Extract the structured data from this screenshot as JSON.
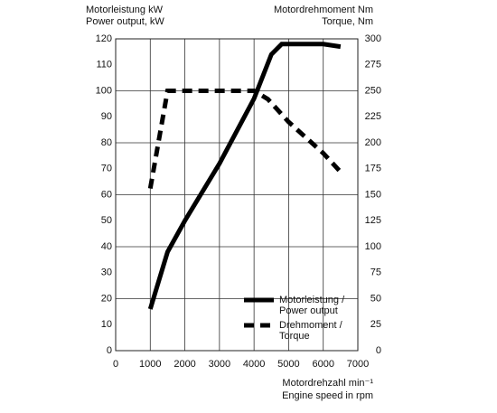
{
  "chart_data": {
    "type": "line",
    "y_label": [
      "Motorleistung kW",
      "Power output, kW"
    ],
    "y2_label": [
      "Motordrehmoment Nm",
      "Torque, Nm"
    ],
    "x_label": [
      "Motordrehzahl min⁻¹",
      "Engine speed in rpm"
    ],
    "xlim": [
      0,
      7000
    ],
    "xticks": [
      0,
      1000,
      2000,
      3000,
      4000,
      5000,
      6000,
      7000
    ],
    "ylim": [
      0,
      120
    ],
    "yticks": [
      0,
      10,
      20,
      30,
      40,
      50,
      60,
      70,
      80,
      90,
      100,
      110,
      120
    ],
    "y2lim": [
      0,
      300
    ],
    "y2ticks": [
      0,
      25,
      50,
      75,
      100,
      125,
      150,
      175,
      200,
      225,
      250,
      275,
      300
    ],
    "grid": true,
    "series": [
      {
        "name": "Motorleistung / Power output",
        "color": "#000000",
        "dash": false,
        "x": [
          1000,
          1500,
          2000,
          3000,
          4000,
          4500,
          4800,
          5000,
          6000,
          6500
        ],
        "values": [
          16,
          38,
          50,
          72,
          97,
          114,
          118,
          118,
          118,
          117
        ]
      },
      {
        "name": "Drehmoment / Torque",
        "color": "#000000",
        "dash": true,
        "axis": "y2",
        "x": [
          1000,
          1500,
          2000,
          3000,
          4000,
          4400,
          5000,
          6000,
          6500
        ],
        "values": [
          156,
          250,
          250,
          250,
          250,
          242,
          220,
          190,
          172
        ]
      }
    ]
  }
}
